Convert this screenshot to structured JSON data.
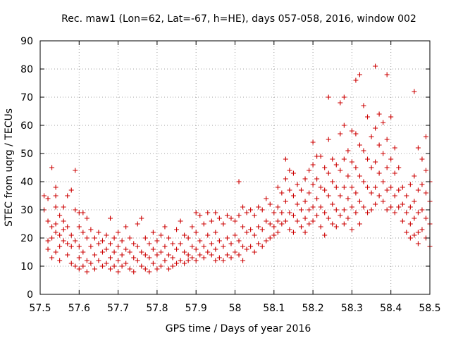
{
  "chart_data": {
    "type": "scatter",
    "title": "Rec. maw1 (Lon=62, Lat=-67, h=HE), days 057-058, 2016, window 002",
    "xlabel": "GPS time / Days of year 2016",
    "ylabel": "STEC from uqrg / TECUs",
    "xlim": [
      57.5,
      58.5
    ],
    "ylim": [
      0,
      90
    ],
    "xticks": [
      "57.5",
      "57.6",
      "57.7",
      "57.8",
      "57.9",
      "58",
      "58.1",
      "58.2",
      "58.3",
      "58.4",
      "58.5"
    ],
    "xtick_values": [
      57.5,
      57.6,
      57.7,
      57.8,
      57.9,
      58.0,
      58.1,
      58.2,
      58.3,
      58.4,
      58.5
    ],
    "yticks": [
      "0",
      "10",
      "20",
      "30",
      "40",
      "50",
      "60",
      "70",
      "80",
      "90"
    ],
    "ytick_values": [
      0,
      10,
      20,
      30,
      40,
      50,
      60,
      70,
      80,
      90
    ],
    "grid": true,
    "marker": "plus",
    "color": "#cc0000",
    "points": [
      [
        57.51,
        35
      ],
      [
        57.51,
        30
      ],
      [
        57.52,
        34
      ],
      [
        57.52,
        26
      ],
      [
        57.52,
        19
      ],
      [
        57.52,
        16
      ],
      [
        57.53,
        45
      ],
      [
        57.53,
        24
      ],
      [
        57.53,
        20
      ],
      [
        57.53,
        13
      ],
      [
        57.54,
        38
      ],
      [
        57.54,
        35
      ],
      [
        57.54,
        31
      ],
      [
        57.54,
        25
      ],
      [
        57.54,
        22
      ],
      [
        57.54,
        15
      ],
      [
        57.55,
        28
      ],
      [
        57.55,
        21
      ],
      [
        57.55,
        17
      ],
      [
        57.55,
        12
      ],
      [
        57.56,
        31
      ],
      [
        57.56,
        26
      ],
      [
        57.56,
        23
      ],
      [
        57.56,
        19
      ],
      [
        57.57,
        35
      ],
      [
        57.57,
        24
      ],
      [
        57.57,
        18
      ],
      [
        57.57,
        14
      ],
      [
        57.58,
        37
      ],
      [
        57.58,
        21
      ],
      [
        57.58,
        17
      ],
      [
        57.58,
        11
      ],
      [
        57.59,
        44
      ],
      [
        57.59,
        30
      ],
      [
        57.59,
        19
      ],
      [
        57.59,
        10
      ],
      [
        57.6,
        29
      ],
      [
        57.6,
        24
      ],
      [
        57.6,
        17
      ],
      [
        57.6,
        13
      ],
      [
        57.6,
        9
      ],
      [
        57.61,
        29
      ],
      [
        57.61,
        22
      ],
      [
        57.61,
        15
      ],
      [
        57.61,
        10
      ],
      [
        57.62,
        27
      ],
      [
        57.62,
        20
      ],
      [
        57.62,
        12
      ],
      [
        57.62,
        8
      ],
      [
        57.63,
        23
      ],
      [
        57.63,
        17
      ],
      [
        57.63,
        11
      ],
      [
        57.64,
        20
      ],
      [
        57.64,
        14
      ],
      [
        57.64,
        9
      ],
      [
        57.65,
        22
      ],
      [
        57.65,
        18
      ],
      [
        57.65,
        12
      ],
      [
        57.66,
        19
      ],
      [
        57.66,
        15
      ],
      [
        57.66,
        10
      ],
      [
        57.67,
        21
      ],
      [
        57.67,
        16
      ],
      [
        57.67,
        11
      ],
      [
        57.68,
        27
      ],
      [
        57.68,
        18
      ],
      [
        57.68,
        13
      ],
      [
        57.68,
        9
      ],
      [
        57.69,
        20
      ],
      [
        57.69,
        15
      ],
      [
        57.69,
        10
      ],
      [
        57.7,
        22
      ],
      [
        57.7,
        17
      ],
      [
        57.7,
        12
      ],
      [
        57.7,
        8
      ],
      [
        57.71,
        19
      ],
      [
        57.71,
        14
      ],
      [
        57.71,
        10
      ],
      [
        57.72,
        24
      ],
      [
        57.72,
        16
      ],
      [
        57.72,
        11
      ],
      [
        57.73,
        20
      ],
      [
        57.73,
        15
      ],
      [
        57.73,
        9
      ],
      [
        57.74,
        18
      ],
      [
        57.74,
        13
      ],
      [
        57.74,
        8
      ],
      [
        57.75,
        25
      ],
      [
        57.75,
        17
      ],
      [
        57.75,
        12
      ],
      [
        57.76,
        27
      ],
      [
        57.76,
        15
      ],
      [
        57.76,
        10
      ],
      [
        57.77,
        20
      ],
      [
        57.77,
        14
      ],
      [
        57.77,
        9
      ],
      [
        57.78,
        18
      ],
      [
        57.78,
        13
      ],
      [
        57.78,
        8
      ],
      [
        57.79,
        22
      ],
      [
        57.79,
        16
      ],
      [
        57.79,
        11
      ],
      [
        57.8,
        19
      ],
      [
        57.8,
        14
      ],
      [
        57.8,
        9
      ],
      [
        57.81,
        21
      ],
      [
        57.81,
        15
      ],
      [
        57.81,
        10
      ],
      [
        57.82,
        24
      ],
      [
        57.82,
        17
      ],
      [
        57.82,
        12
      ],
      [
        57.83,
        20
      ],
      [
        57.83,
        14
      ],
      [
        57.83,
        9
      ],
      [
        57.84,
        18
      ],
      [
        57.84,
        13
      ],
      [
        57.84,
        10
      ],
      [
        57.85,
        23
      ],
      [
        57.85,
        16
      ],
      [
        57.85,
        11
      ],
      [
        57.86,
        26
      ],
      [
        57.86,
        18
      ],
      [
        57.86,
        12
      ],
      [
        57.87,
        21
      ],
      [
        57.87,
        15
      ],
      [
        57.87,
        11
      ],
      [
        57.88,
        20
      ],
      [
        57.88,
        14
      ],
      [
        57.88,
        12
      ],
      [
        57.89,
        24
      ],
      [
        57.89,
        17
      ],
      [
        57.89,
        13
      ],
      [
        57.9,
        29
      ],
      [
        57.9,
        22
      ],
      [
        57.9,
        16
      ],
      [
        57.9,
        12
      ],
      [
        57.91,
        28
      ],
      [
        57.91,
        19
      ],
      [
        57.91,
        14
      ],
      [
        57.92,
        25
      ],
      [
        57.92,
        17
      ],
      [
        57.92,
        13
      ],
      [
        57.93,
        29
      ],
      [
        57.93,
        21
      ],
      [
        57.93,
        15
      ],
      [
        57.94,
        26
      ],
      [
        57.94,
        18
      ],
      [
        57.94,
        14
      ],
      [
        57.95,
        29
      ],
      [
        57.95,
        22
      ],
      [
        57.95,
        16
      ],
      [
        57.95,
        12
      ],
      [
        57.96,
        27
      ],
      [
        57.96,
        19
      ],
      [
        57.96,
        13
      ],
      [
        57.97,
        25
      ],
      [
        57.97,
        17
      ],
      [
        57.97,
        12
      ],
      [
        57.98,
        28
      ],
      [
        57.98,
        20
      ],
      [
        57.98,
        14
      ],
      [
        57.99,
        27
      ],
      [
        57.99,
        18
      ],
      [
        57.99,
        13
      ],
      [
        58.0,
        26
      ],
      [
        58.0,
        21
      ],
      [
        58.0,
        15
      ],
      [
        58.01,
        40
      ],
      [
        58.01,
        28
      ],
      [
        58.01,
        19
      ],
      [
        58.01,
        14
      ],
      [
        58.02,
        31
      ],
      [
        58.02,
        24
      ],
      [
        58.02,
        17
      ],
      [
        58.02,
        12
      ],
      [
        58.03,
        29
      ],
      [
        58.03,
        22
      ],
      [
        58.03,
        16
      ],
      [
        58.04,
        30
      ],
      [
        58.04,
        23
      ],
      [
        58.04,
        17
      ],
      [
        58.05,
        28
      ],
      [
        58.05,
        21
      ],
      [
        58.05,
        15
      ],
      [
        58.06,
        31
      ],
      [
        58.06,
        24
      ],
      [
        58.06,
        18
      ],
      [
        58.07,
        30
      ],
      [
        58.07,
        23
      ],
      [
        58.07,
        17
      ],
      [
        58.08,
        34
      ],
      [
        58.08,
        26
      ],
      [
        58.08,
        19
      ],
      [
        58.09,
        32
      ],
      [
        58.09,
        25
      ],
      [
        58.09,
        20
      ],
      [
        58.1,
        29
      ],
      [
        58.1,
        24
      ],
      [
        58.1,
        21
      ],
      [
        58.11,
        38
      ],
      [
        58.11,
        31
      ],
      [
        58.11,
        26
      ],
      [
        58.11,
        22
      ],
      [
        58.12,
        36
      ],
      [
        58.12,
        29
      ],
      [
        58.12,
        25
      ],
      [
        58.13,
        48
      ],
      [
        58.13,
        41
      ],
      [
        58.13,
        33
      ],
      [
        58.13,
        26
      ],
      [
        58.14,
        44
      ],
      [
        58.14,
        37
      ],
      [
        58.14,
        29
      ],
      [
        58.14,
        23
      ],
      [
        58.15,
        43
      ],
      [
        58.15,
        35
      ],
      [
        58.15,
        28
      ],
      [
        58.15,
        22
      ],
      [
        58.16,
        39
      ],
      [
        58.16,
        32
      ],
      [
        58.16,
        26
      ],
      [
        58.17,
        37
      ],
      [
        58.17,
        30
      ],
      [
        58.17,
        24
      ],
      [
        58.18,
        41
      ],
      [
        58.18,
        33
      ],
      [
        58.18,
        27
      ],
      [
        58.18,
        22
      ],
      [
        58.19,
        44
      ],
      [
        58.19,
        36
      ],
      [
        58.19,
        30
      ],
      [
        58.19,
        25
      ],
      [
        58.2,
        54
      ],
      [
        58.2,
        46
      ],
      [
        58.2,
        39
      ],
      [
        58.2,
        31
      ],
      [
        58.2,
        26
      ],
      [
        58.21,
        49
      ],
      [
        58.21,
        41
      ],
      [
        58.21,
        34
      ],
      [
        58.21,
        28
      ],
      [
        58.22,
        49
      ],
      [
        58.22,
        38
      ],
      [
        58.22,
        31
      ],
      [
        58.22,
        24
      ],
      [
        58.23,
        45
      ],
      [
        58.23,
        37
      ],
      [
        58.23,
        29
      ],
      [
        58.23,
        21
      ],
      [
        58.24,
        70
      ],
      [
        58.24,
        55
      ],
      [
        58.24,
        43
      ],
      [
        58.24,
        35
      ],
      [
        58.24,
        27
      ],
      [
        58.25,
        48
      ],
      [
        58.25,
        40
      ],
      [
        58.25,
        32
      ],
      [
        58.25,
        25
      ],
      [
        58.26,
        46
      ],
      [
        58.26,
        38
      ],
      [
        58.26,
        30
      ],
      [
        58.26,
        24
      ],
      [
        58.27,
        68
      ],
      [
        58.27,
        57
      ],
      [
        58.27,
        44
      ],
      [
        58.27,
        35
      ],
      [
        58.27,
        28
      ],
      [
        58.28,
        70
      ],
      [
        58.28,
        60
      ],
      [
        58.28,
        48
      ],
      [
        58.28,
        38
      ],
      [
        58.28,
        30
      ],
      [
        58.28,
        25
      ],
      [
        58.29,
        51
      ],
      [
        58.29,
        42
      ],
      [
        58.29,
        34
      ],
      [
        58.29,
        27
      ],
      [
        58.3,
        58
      ],
      [
        58.3,
        47
      ],
      [
        58.3,
        38
      ],
      [
        58.3,
        31
      ],
      [
        58.3,
        23
      ],
      [
        58.31,
        76
      ],
      [
        58.31,
        57
      ],
      [
        58.31,
        45
      ],
      [
        58.31,
        36
      ],
      [
        58.31,
        29
      ],
      [
        58.32,
        78
      ],
      [
        58.32,
        53
      ],
      [
        58.32,
        42
      ],
      [
        58.32,
        33
      ],
      [
        58.32,
        25
      ],
      [
        58.33,
        67
      ],
      [
        58.33,
        51
      ],
      [
        58.33,
        40
      ],
      [
        58.33,
        31
      ],
      [
        58.34,
        63
      ],
      [
        58.34,
        48
      ],
      [
        58.34,
        38
      ],
      [
        58.34,
        29
      ],
      [
        58.35,
        56
      ],
      [
        58.35,
        45
      ],
      [
        58.35,
        36
      ],
      [
        58.35,
        30
      ],
      [
        58.36,
        81
      ],
      [
        58.36,
        59
      ],
      [
        58.36,
        47
      ],
      [
        58.36,
        38
      ],
      [
        58.36,
        32
      ],
      [
        58.37,
        64
      ],
      [
        58.37,
        53
      ],
      [
        58.37,
        43
      ],
      [
        58.37,
        35
      ],
      [
        58.38,
        61
      ],
      [
        58.38,
        50
      ],
      [
        58.38,
        40
      ],
      [
        58.38,
        33
      ],
      [
        58.39,
        78
      ],
      [
        58.39,
        55
      ],
      [
        58.39,
        45
      ],
      [
        58.39,
        37
      ],
      [
        58.39,
        30
      ],
      [
        58.4,
        63
      ],
      [
        58.4,
        48
      ],
      [
        58.4,
        38
      ],
      [
        58.4,
        31
      ],
      [
        58.41,
        52
      ],
      [
        58.41,
        43
      ],
      [
        58.41,
        35
      ],
      [
        58.41,
        29
      ],
      [
        58.42,
        45
      ],
      [
        58.42,
        37
      ],
      [
        58.42,
        31
      ],
      [
        58.43,
        38
      ],
      [
        58.43,
        32
      ],
      [
        58.43,
        26
      ],
      [
        58.44,
        35
      ],
      [
        58.44,
        29
      ],
      [
        58.44,
        22
      ],
      [
        58.45,
        39
      ],
      [
        58.45,
        31
      ],
      [
        58.45,
        25
      ],
      [
        58.45,
        20
      ],
      [
        58.46,
        72
      ],
      [
        58.46,
        42
      ],
      [
        58.46,
        33
      ],
      [
        58.46,
        27
      ],
      [
        58.46,
        21
      ],
      [
        58.47,
        52
      ],
      [
        58.47,
        37
      ],
      [
        58.47,
        29
      ],
      [
        58.47,
        22
      ],
      [
        58.47,
        18
      ],
      [
        58.48,
        48
      ],
      [
        58.48,
        39
      ],
      [
        58.48,
        30
      ],
      [
        58.48,
        23
      ],
      [
        58.49,
        56
      ],
      [
        58.49,
        44
      ],
      [
        58.49,
        36
      ],
      [
        58.49,
        27
      ],
      [
        58.49,
        20
      ],
      [
        58.5,
        40
      ],
      [
        58.5,
        33
      ],
      [
        58.5,
        25
      ],
      [
        58.5,
        17
      ]
    ]
  }
}
